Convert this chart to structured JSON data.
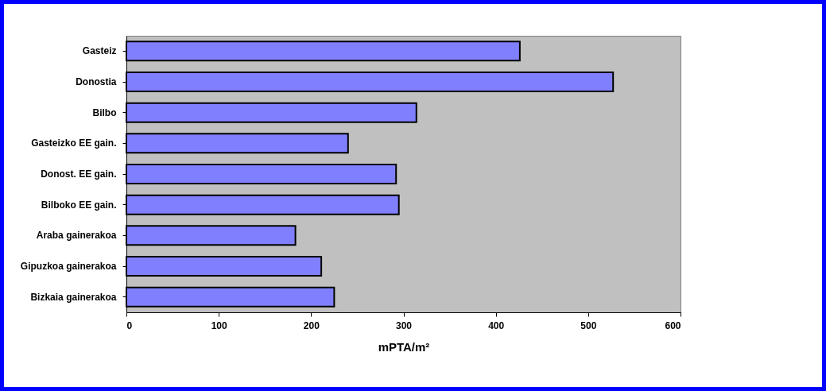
{
  "chart_data": {
    "type": "bar",
    "orientation": "horizontal",
    "xlabel": "mPTA/m²",
    "categories": [
      "Gasteiz",
      "Donostia",
      "Bilbo",
      "Gasteizko EE gain.",
      "Donost. EE gain.",
      "Bilboko EE gain.",
      "Araba gainerakoa",
      "Gipuzkoa gainerakoa",
      "Bizkaia gainerakoa"
    ],
    "values": [
      426,
      527,
      314,
      240,
      292,
      295,
      183,
      211,
      225
    ],
    "color": "#8080ff",
    "xlim": [
      0,
      600
    ],
    "xticks": [
      0,
      100,
      200,
      300,
      400,
      500,
      600
    ],
    "grid": false
  }
}
